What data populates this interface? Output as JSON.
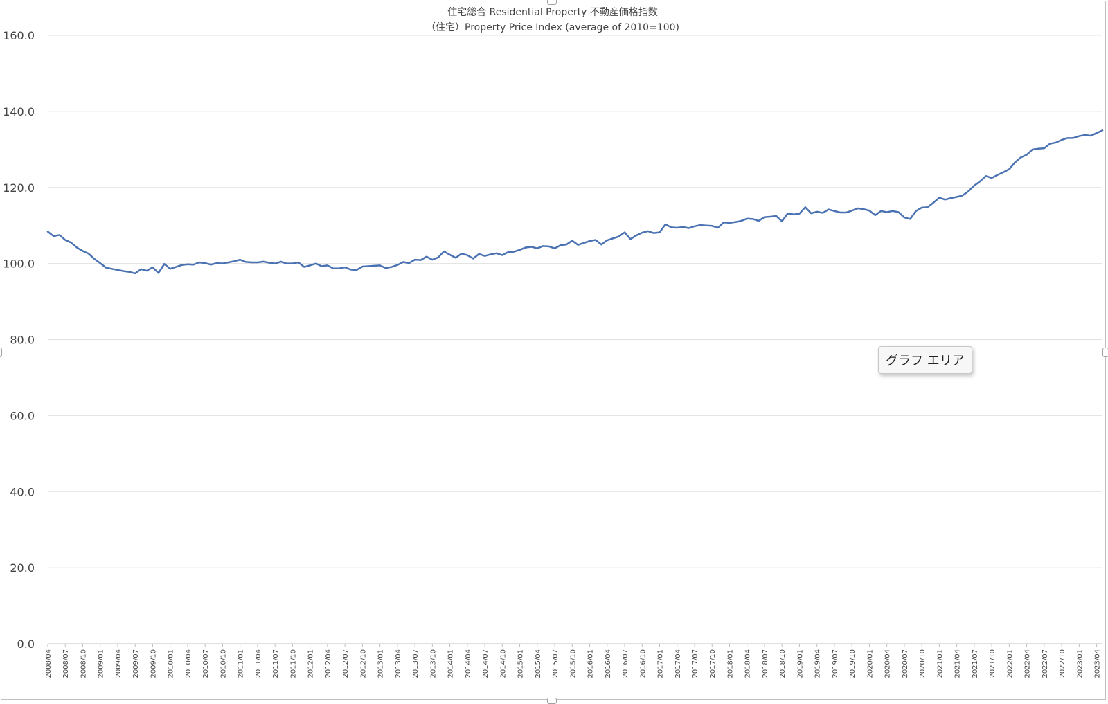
{
  "tooltip": {
    "label": "グラフ エリア"
  },
  "chart_data": {
    "type": "line",
    "title": "住宅総合 Residential Property 不動産価格指数",
    "subtitle": "（住宅）Property Price Index (average of 2010=100)",
    "xlabel": "",
    "ylabel": "",
    "ylim": [
      0,
      160
    ],
    "yticks": [
      "0.0",
      "20.0",
      "40.0",
      "60.0",
      "80.0",
      "100.0",
      "120.0",
      "140.0",
      "160.0"
    ],
    "grid": true,
    "legend": "none",
    "line_color": "#4a72b2",
    "x_tick_labels": [
      "2008/04",
      "2008/07",
      "2008/10",
      "2009/01",
      "2009/04",
      "2009/07",
      "2009/10",
      "2010/01",
      "2010/04",
      "2010/07",
      "2010/10",
      "2011/01",
      "2011/04",
      "2011/07",
      "2011/10",
      "2012/01",
      "2012/04",
      "2012/07",
      "2012/10",
      "2013/01",
      "2013/04",
      "2013/07",
      "2013/10",
      "2014/01",
      "2014/04",
      "2014/07",
      "2014/10",
      "2015/01",
      "2015/04",
      "2015/07",
      "2015/10",
      "2016/01",
      "2016/04",
      "2016/07",
      "2016/10",
      "2017/01",
      "2017/04",
      "2017/07",
      "2017/10",
      "2018/01",
      "2018/04",
      "2018/07",
      "2018/10",
      "2019/01",
      "2019/04",
      "2019/07",
      "2019/10",
      "2020/01",
      "2020/04",
      "2020/07",
      "2020/10",
      "2021/01",
      "2021/04",
      "2021/07",
      "2021/10",
      "2022/01",
      "2022/04",
      "2022/07",
      "2022/10",
      "2023/01",
      "2023/04"
    ],
    "series": [
      {
        "start": "2008/04",
        "frequency": "monthly",
        "values": [
          108.4,
          107.2,
          107.5,
          106.2,
          105.5,
          104.2,
          103.3,
          102.6,
          101.2,
          100.1,
          98.9,
          98.6,
          98.3,
          98.0,
          97.8,
          97.4,
          98.5,
          98.1,
          99.0,
          97.5,
          99.9,
          98.6,
          99.1,
          99.6,
          99.8,
          99.7,
          100.3,
          100.1,
          99.7,
          100.1,
          100.0,
          100.3,
          100.6,
          101.0,
          100.4,
          100.3,
          100.3,
          100.5,
          100.2,
          100.0,
          100.5,
          100.0,
          100.0,
          100.3,
          99.1,
          99.5,
          100.0,
          99.3,
          99.5,
          98.7,
          98.7,
          99.0,
          98.4,
          98.3,
          99.2,
          99.3,
          99.4,
          99.5,
          98.8,
          99.1,
          99.6,
          100.4,
          100.1,
          101.0,
          100.9,
          101.8,
          101.0,
          101.6,
          103.2,
          102.3,
          101.5,
          102.6,
          102.2,
          101.3,
          102.5,
          102.0,
          102.4,
          102.7,
          102.2,
          103.0,
          103.1,
          103.6,
          104.2,
          104.4,
          104.0,
          104.6,
          104.5,
          104.0,
          104.8,
          105.0,
          106.0,
          104.9,
          105.4,
          105.9,
          106.2,
          105.0,
          106.1,
          106.6,
          107.1,
          108.2,
          106.4,
          107.4,
          108.1,
          108.5,
          108.0,
          108.2,
          110.3,
          109.5,
          109.4,
          109.6,
          109.3,
          109.8,
          110.1,
          110.0,
          109.9,
          109.4,
          110.8,
          110.7,
          110.9,
          111.2,
          111.8,
          111.7,
          111.2,
          112.2,
          112.3,
          112.5,
          111.1,
          113.2,
          112.9,
          113.1,
          114.8,
          113.2,
          113.6,
          113.3,
          114.2,
          113.8,
          113.4,
          113.4,
          113.9,
          114.5,
          114.3,
          113.9,
          112.7,
          113.8,
          113.5,
          113.8,
          113.5,
          112.1,
          111.7,
          113.8,
          114.7,
          114.8,
          116.0,
          117.3,
          116.8,
          117.2,
          117.5,
          117.9,
          119.0,
          120.5,
          121.6,
          123.0,
          122.5,
          123.3,
          124.0,
          124.8,
          126.6,
          127.9,
          128.6,
          130.0,
          130.2,
          130.3,
          131.5,
          131.8,
          132.5,
          133.0,
          133.0,
          133.5,
          133.8,
          133.6,
          134.3,
          135.0
        ]
      }
    ]
  }
}
